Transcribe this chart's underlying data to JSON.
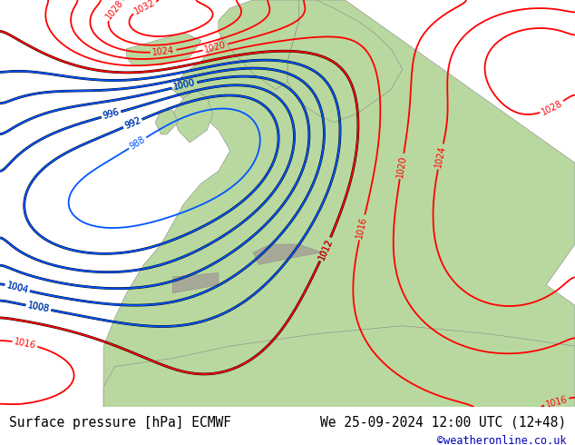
{
  "title_left": "Surface pressure [hPa] ECMWF",
  "title_right": "We 25-09-2024 12:00 UTC (12+48)",
  "copyright": "©weatheronline.co.uk",
  "text_color": "#000000",
  "copyright_color": "#0000bb",
  "bottom_bar_color": "#d0d0d0",
  "figsize": [
    6.34,
    4.9
  ],
  "dpi": 100,
  "font_size_title": 10.5,
  "font_size_copyright": 8.5,
  "land_color": "#b8d8a0",
  "ocean_color": "#c8d8e8",
  "mountain_color": "#b0b8a0",
  "isobar_blue": "#0055ff",
  "isobar_red": "#ff0000",
  "isobar_black": "#000000",
  "contour_lw_blue": 1.3,
  "contour_lw_red": 1.3,
  "contour_lw_black": 2.0,
  "label_fontsize": 7,
  "levels_blue": [
    988,
    992,
    996,
    1000,
    1004,
    1008
  ],
  "levels_red": [
    1012,
    1016,
    1020,
    1024,
    1028,
    1032
  ],
  "levels_black": [
    992,
    996,
    1000,
    1004,
    1008,
    1012
  ]
}
